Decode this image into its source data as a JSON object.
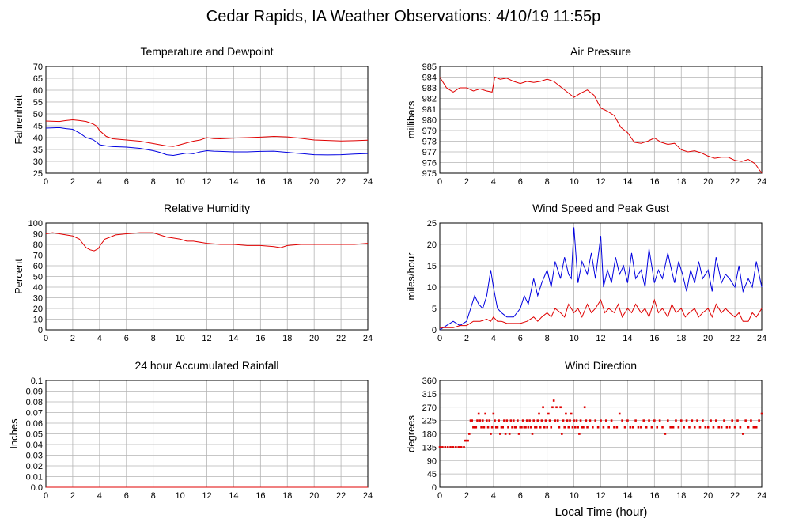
{
  "page_title": "Cedar Rapids, IA Weather Observations: 4/10/19 11:55p",
  "xlabel": "Local Time (hour)",
  "x_ticks": [
    0,
    2,
    4,
    6,
    8,
    10,
    12,
    14,
    16,
    18,
    20,
    22,
    24
  ],
  "chart_data": [
    {
      "id": "temp",
      "type": "line",
      "title": "Temperature and Dewpoint",
      "ylabel": "Fahrenheit",
      "xlim": [
        0,
        24
      ],
      "ylim": [
        25,
        70
      ],
      "y_ticks": [
        25,
        30,
        35,
        40,
        45,
        50,
        55,
        60,
        65,
        70
      ],
      "grid": true,
      "series": [
        {
          "color": "#e00000",
          "x": [
            0,
            1,
            1.5,
            2,
            2.5,
            3,
            3.5,
            3.8,
            4,
            4.5,
            5,
            6,
            7,
            8,
            8.5,
            9,
            9.5,
            10,
            10.5,
            11,
            11.5,
            12,
            12.5,
            13,
            14,
            15,
            16,
            17,
            18,
            19,
            20,
            21,
            22,
            23,
            24
          ],
          "y": [
            47,
            46.8,
            47.2,
            47.5,
            47.2,
            46.8,
            45.8,
            44.8,
            43,
            40.5,
            39.5,
            39,
            38.5,
            37.5,
            37,
            36.5,
            36.3,
            37,
            37.8,
            38.5,
            39,
            40,
            39.6,
            39.5,
            39.8,
            40,
            40.2,
            40.5,
            40.3,
            39.7,
            39,
            38.8,
            38.6,
            38.7,
            38.9
          ]
        },
        {
          "color": "#0000e0",
          "x": [
            0,
            1,
            1.5,
            2,
            2.5,
            3,
            3.5,
            3.8,
            4,
            4.5,
            5,
            6,
            7,
            8,
            8.5,
            9,
            9.5,
            10,
            10.5,
            11,
            11.5,
            12,
            12.5,
            13,
            14,
            15,
            16,
            17,
            18,
            19,
            20,
            21,
            22,
            23,
            24
          ],
          "y": [
            44,
            44.2,
            43.8,
            43.5,
            42,
            40,
            39.2,
            38,
            37,
            36.5,
            36.2,
            36,
            35.5,
            34.5,
            33.8,
            32.8,
            32.5,
            33,
            33.5,
            33.2,
            34,
            34.5,
            34.3,
            34.2,
            34,
            34,
            34.2,
            34.3,
            33.8,
            33.3,
            32.8,
            32.7,
            32.8,
            33.1,
            33.3
          ]
        }
      ]
    },
    {
      "id": "pressure",
      "type": "line",
      "title": "Air Pressure",
      "ylabel": "millibars",
      "xlim": [
        0,
        24
      ],
      "ylim": [
        975,
        985
      ],
      "y_ticks": [
        975,
        976,
        977,
        978,
        979,
        980,
        981,
        982,
        983,
        984,
        985
      ],
      "grid": true,
      "series": [
        {
          "color": "#e00000",
          "x": [
            0,
            0.5,
            1,
            1.5,
            2,
            2.5,
            3,
            3.5,
            3.9,
            4.1,
            4.5,
            5,
            5.5,
            6,
            6.5,
            7,
            7.5,
            8,
            8.5,
            9,
            9.5,
            10,
            10.5,
            11,
            11.5,
            12,
            12.5,
            13,
            13.5,
            14,
            14.5,
            15,
            15.5,
            16,
            16.5,
            17,
            17.5,
            18,
            18.5,
            19,
            19.5,
            20,
            20.5,
            21,
            21.5,
            22,
            22.5,
            23,
            23.5,
            24
          ],
          "y": [
            984,
            983,
            982.6,
            983,
            983,
            982.7,
            982.9,
            982.7,
            982.6,
            984,
            983.8,
            983.9,
            983.6,
            983.4,
            983.6,
            983.5,
            983.6,
            983.8,
            983.6,
            983.1,
            982.6,
            982.1,
            982.5,
            982.8,
            982.3,
            981.1,
            980.8,
            980.4,
            979.3,
            978.8,
            977.9,
            977.8,
            978.0,
            978.3,
            977.9,
            977.7,
            977.8,
            977.2,
            977.0,
            977.1,
            976.9,
            976.6,
            976.4,
            976.5,
            976.5,
            976.2,
            976.1,
            976.3,
            975.9,
            975.0
          ]
        }
      ]
    },
    {
      "id": "humidity",
      "type": "line",
      "title": "Relative Humidity",
      "ylabel": "Percent",
      "xlim": [
        0,
        24
      ],
      "ylim": [
        0,
        100
      ],
      "y_ticks": [
        0,
        10,
        20,
        30,
        40,
        50,
        60,
        70,
        80,
        90,
        100
      ],
      "grid": true,
      "series": [
        {
          "color": "#e00000",
          "x": [
            0,
            0.5,
            1,
            1.5,
            2,
            2.5,
            2.8,
            3,
            3.3,
            3.6,
            3.9,
            4.1,
            4.4,
            4.8,
            5.2,
            6,
            7,
            8,
            8.5,
            9,
            9.5,
            10,
            10.5,
            11,
            12,
            13,
            14,
            15,
            16,
            17,
            17.5,
            18,
            19,
            20,
            21,
            22,
            23,
            24
          ],
          "y": [
            90,
            91,
            90,
            89,
            88,
            85,
            80,
            77,
            75,
            74,
            76,
            80,
            85,
            87,
            89,
            90,
            91,
            91,
            89,
            87,
            86,
            85,
            83,
            83,
            81,
            80,
            80,
            79,
            79,
            78,
            77,
            79,
            80,
            80,
            80,
            80,
            80,
            81
          ]
        }
      ]
    },
    {
      "id": "wind_speed",
      "type": "line",
      "title": "Wind Speed and Peak Gust",
      "ylabel": "miles/hour",
      "xlim": [
        0,
        24
      ],
      "ylim": [
        0,
        25
      ],
      "y_ticks": [
        0,
        5,
        10,
        15,
        20,
        25
      ],
      "grid": true,
      "series": [
        {
          "color": "#0000e0",
          "x": [
            0,
            0.5,
            1,
            1.5,
            2,
            2.3,
            2.6,
            2.9,
            3.2,
            3.5,
            3.8,
            4,
            4.3,
            4.6,
            5,
            5.5,
            6,
            6.3,
            6.6,
            7,
            7.3,
            7.6,
            8,
            8.3,
            8.6,
            9,
            9.3,
            9.6,
            9.8,
            10,
            10.3,
            10.6,
            11,
            11.3,
            11.6,
            12,
            12.2,
            12.5,
            12.8,
            13.1,
            13.4,
            13.7,
            14,
            14.3,
            14.6,
            15,
            15.3,
            15.6,
            16,
            16.3,
            16.6,
            17,
            17.2,
            17.5,
            17.8,
            18.1,
            18.4,
            18.7,
            19,
            19.3,
            19.6,
            20,
            20.3,
            20.6,
            21,
            21.3,
            21.6,
            22,
            22.3,
            22.6,
            23,
            23.3,
            23.6,
            24
          ],
          "y": [
            0,
            1,
            2,
            1,
            2,
            5,
            8,
            6,
            5,
            8,
            14,
            10,
            5,
            4,
            3,
            3,
            5,
            8,
            6,
            12,
            8,
            11,
            14,
            10,
            16,
            12,
            17,
            13,
            12,
            24,
            11,
            16,
            13,
            18,
            12,
            22,
            10,
            14,
            11,
            17,
            13,
            15,
            11,
            18,
            12,
            14,
            10,
            19,
            11,
            14,
            12,
            18,
            15,
            11,
            16,
            13,
            9,
            14,
            11,
            16,
            12,
            14,
            9,
            17,
            11,
            13,
            12,
            10,
            15,
            9,
            12,
            10,
            16,
            10
          ]
        },
        {
          "color": "#e00000",
          "x": [
            0,
            0.5,
            1,
            1.5,
            2,
            2.5,
            3,
            3.5,
            3.8,
            4,
            4.3,
            4.6,
            5,
            5.5,
            6,
            6.5,
            7,
            7.3,
            7.6,
            8,
            8.3,
            8.6,
            9,
            9.3,
            9.6,
            10,
            10.3,
            10.6,
            11,
            11.3,
            11.6,
            12,
            12.3,
            12.6,
            13,
            13.3,
            13.6,
            14,
            14.3,
            14.6,
            15,
            15.3,
            15.6,
            16,
            16.3,
            16.6,
            17,
            17.3,
            17.6,
            18,
            18.3,
            18.6,
            19,
            19.3,
            19.6,
            20,
            20.3,
            20.6,
            21,
            21.3,
            21.6,
            22,
            22.3,
            22.6,
            23,
            23.3,
            23.6,
            24
          ],
          "y": [
            0.5,
            0.5,
            0.5,
            1,
            1,
            2,
            2,
            2.5,
            2,
            3,
            2,
            2,
            1.5,
            1.5,
            1.5,
            2,
            3,
            2,
            3,
            4,
            3,
            5,
            4,
            3,
            6,
            4,
            5,
            3,
            6,
            4,
            5,
            7,
            4,
            5,
            4,
            6,
            3,
            5,
            4,
            6,
            4,
            5,
            3,
            7,
            4,
            5,
            3,
            6,
            4,
            5,
            3,
            4,
            5,
            3,
            4,
            5,
            3,
            6,
            4,
            5,
            4,
            3,
            4,
            2,
            2,
            4,
            3,
            5
          ]
        }
      ]
    },
    {
      "id": "rainfall",
      "type": "line",
      "title": "24 hour Accumulated Rainfall",
      "ylabel": "Inches",
      "xlim": [
        0,
        24
      ],
      "ylim": [
        0,
        0.1
      ],
      "y_ticks": [
        "0.0",
        "0.01",
        "0.02",
        "0.03",
        "0.04",
        "0.05",
        "0.06",
        "0.07",
        "0.08",
        "0.09",
        "0.1"
      ],
      "grid": true,
      "series": [
        {
          "color": "#e00000",
          "x": [
            0,
            24
          ],
          "y": [
            0,
            0
          ]
        }
      ]
    },
    {
      "id": "wind_dir",
      "type": "scatter",
      "title": "Wind Direction",
      "ylabel": "degrees",
      "xlim": [
        0,
        24
      ],
      "ylim": [
        0,
        360
      ],
      "y_ticks": [
        0,
        45,
        90,
        135,
        180,
        225,
        270,
        315,
        360
      ],
      "grid": true,
      "series": [
        {
          "color": "#e00000",
          "x": [
            0,
            0.2,
            0.4,
            0.6,
            0.8,
            1,
            1.2,
            1.4,
            1.6,
            1.8,
            1.9,
            2.0,
            2.1,
            2.2,
            2.3,
            2.4,
            2.5,
            2.6,
            2.7,
            2.8,
            2.9,
            3.0,
            3.1,
            3.2,
            3.3,
            3.4,
            3.5,
            3.6,
            3.7,
            3.8,
            3.9,
            4.0,
            4.1,
            4.2,
            4.3,
            4.4,
            4.5,
            4.6,
            4.7,
            4.8,
            4.9,
            5.0,
            5.1,
            5.2,
            5.3,
            5.4,
            5.5,
            5.6,
            5.7,
            5.8,
            5.9,
            6.0,
            6.1,
            6.2,
            6.3,
            6.4,
            6.5,
            6.6,
            6.7,
            6.8,
            6.9,
            7.0,
            7.1,
            7.2,
            7.3,
            7.4,
            7.5,
            7.6,
            7.7,
            7.8,
            7.9,
            8.0,
            8.1,
            8.2,
            8.3,
            8.4,
            8.5,
            8.6,
            8.7,
            8.8,
            8.9,
            9.0,
            9.1,
            9.2,
            9.3,
            9.4,
            9.5,
            9.6,
            9.7,
            9.8,
            9.9,
            10.0,
            10.1,
            10.2,
            10.3,
            10.4,
            10.5,
            10.6,
            10.7,
            10.8,
            10.9,
            11.0,
            11.2,
            11.4,
            11.6,
            11.8,
            12.0,
            12.2,
            12.4,
            12.6,
            12.8,
            13.0,
            13.2,
            13.4,
            13.6,
            13.8,
            14.0,
            14.2,
            14.4,
            14.6,
            14.8,
            15.0,
            15.2,
            15.4,
            15.6,
            15.8,
            16.0,
            16.2,
            16.4,
            16.6,
            16.8,
            17.0,
            17.2,
            17.4,
            17.6,
            17.8,
            18.0,
            18.2,
            18.4,
            18.6,
            18.8,
            19.0,
            19.2,
            19.4,
            19.6,
            19.8,
            20.0,
            20.2,
            20.4,
            20.6,
            20.8,
            21.0,
            21.2,
            21.4,
            21.6,
            21.8,
            22.0,
            22.2,
            22.4,
            22.6,
            22.8,
            23.0,
            23.2,
            23.4,
            23.6,
            23.8,
            24.0
          ],
          "y": [
            135,
            135,
            135,
            135,
            135,
            135,
            135,
            135,
            135,
            135,
            157,
            157,
            157,
            180,
            225,
            225,
            202,
            202,
            202,
            225,
            248,
            225,
            202,
            225,
            202,
            248,
            225,
            202,
            225,
            180,
            202,
            248,
            225,
            202,
            202,
            225,
            180,
            202,
            202,
            225,
            180,
            225,
            202,
            180,
            225,
            202,
            225,
            202,
            202,
            225,
            180,
            202,
            202,
            225,
            202,
            202,
            225,
            202,
            225,
            202,
            180,
            225,
            202,
            202,
            225,
            248,
            202,
            225,
            270,
            202,
            225,
            202,
            248,
            225,
            202,
            270,
            292,
            225,
            270,
            225,
            202,
            270,
            180,
            225,
            202,
            248,
            225,
            202,
            225,
            248,
            202,
            225,
            202,
            225,
            202,
            180,
            225,
            202,
            202,
            270,
            225,
            202,
            225,
            202,
            225,
            202,
            225,
            202,
            225,
            202,
            225,
            202,
            202,
            248,
            225,
            202,
            225,
            202,
            202,
            225,
            202,
            202,
            225,
            202,
            225,
            202,
            225,
            202,
            225,
            202,
            180,
            225,
            202,
            202,
            225,
            202,
            225,
            202,
            225,
            202,
            225,
            202,
            225,
            202,
            225,
            202,
            202,
            225,
            202,
            225,
            202,
            202,
            225,
            202,
            202,
            225,
            202,
            225,
            202,
            180,
            225,
            202,
            225,
            202,
            202,
            225,
            248
          ]
        }
      ]
    }
  ]
}
